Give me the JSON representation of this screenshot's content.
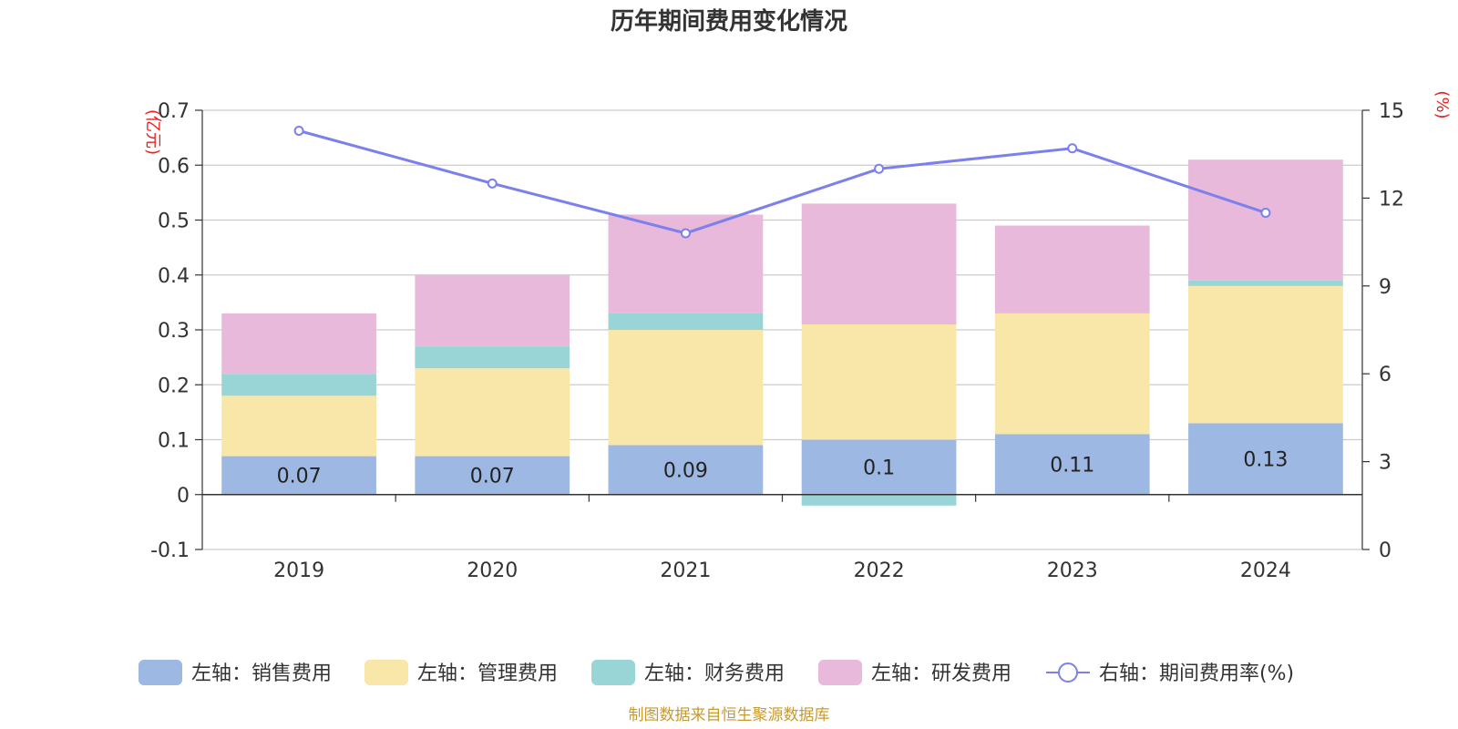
{
  "chart_data": {
    "type": "bar",
    "title": "历年期间费用变化情况",
    "categories": [
      "2019",
      "2020",
      "2021",
      "2022",
      "2023",
      "2024"
    ],
    "left_axis": {
      "unit": "(亿元)",
      "ylim": [
        -0.1,
        0.7
      ],
      "ticks": [
        "-0.1",
        "0",
        "0.1",
        "0.2",
        "0.3",
        "0.4",
        "0.5",
        "0.6",
        "0.7"
      ]
    },
    "right_axis": {
      "unit": "(%)",
      "ylim": [
        0,
        15
      ],
      "ticks": [
        "0",
        "3",
        "6",
        "9",
        "12",
        "15"
      ]
    },
    "series": [
      {
        "name": "左轴：销售费用",
        "type": "bar",
        "stacked": true,
        "color": "#9db8e2",
        "values": [
          0.07,
          0.07,
          0.09,
          0.1,
          0.11,
          0.13
        ],
        "labels": [
          "0.07",
          "0.07",
          "0.09",
          "0.1",
          "0.11",
          "0.13"
        ]
      },
      {
        "name": "左轴：管理费用",
        "type": "bar",
        "stacked": true,
        "color": "#f8e7a8",
        "values": [
          0.11,
          0.16,
          0.21,
          0.21,
          0.22,
          0.25
        ]
      },
      {
        "name": "左轴：财务费用",
        "type": "bar",
        "stacked": true,
        "color": "#99d5d6",
        "values": [
          0.04,
          0.04,
          0.03,
          -0.02,
          0.0,
          0.01
        ]
      },
      {
        "name": "左轴：研发费用",
        "type": "bar",
        "stacked": true,
        "color": "#e8b9da",
        "values": [
          0.11,
          0.13,
          0.18,
          0.22,
          0.16,
          0.22
        ]
      },
      {
        "name": "右轴：期间费用率(%)",
        "type": "line",
        "axis": "right",
        "color": "#7b80ec",
        "values": [
          14.3,
          12.5,
          10.8,
          13.0,
          13.7,
          11.5
        ]
      }
    ],
    "grid": true,
    "legend_position": "bottom"
  },
  "source_note": "制图数据来自恒生聚源数据库"
}
